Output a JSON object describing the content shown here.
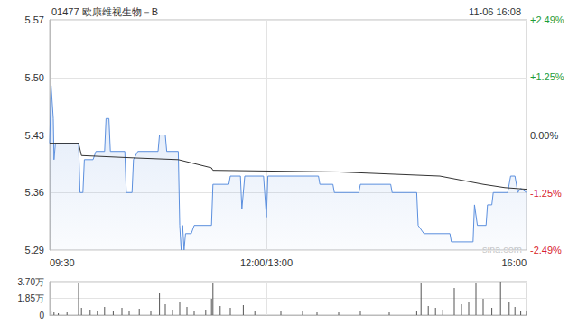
{
  "chart_data": [
    {
      "type": "line",
      "title": "01477 欧康维视生物－B",
      "subtitle": "11-06 16:08",
      "annotations": [
        {
          "text": "sina.com"
        }
      ],
      "xlim": [
        0,
        330
      ],
      "xticks": [
        {
          "value": 0,
          "label": "09:30"
        },
        {
          "value": 150,
          "label": "12:00/13:00"
        },
        {
          "value": 330,
          "label": "16:00"
        }
      ],
      "ylim": [
        5.29,
        5.57
      ],
      "yticks": [
        5.29,
        5.36,
        5.43,
        {
          "value": 5.5,
          "label": "5.50"
        },
        5.57
      ],
      "y2lim": [
        -2.49,
        2.49
      ],
      "y2ticks": [
        {
          "value": -2.49,
          "label": "-2.49%"
        },
        {
          "value": -1.25,
          "label": "-1.25%"
        },
        {
          "value": 0,
          "label": "0.00%"
        },
        {
          "value": 1.25,
          "label": "+1.25%"
        },
        {
          "value": 2.49,
          "label": "+2.49%"
        }
      ],
      "grid": true,
      "series": [
        {
          "color": "#5b8fde",
          "x": [
            0,
            1,
            2.5,
            3,
            4,
            20,
            21,
            23,
            24,
            30,
            32,
            38,
            39,
            41,
            42,
            52,
            53,
            57,
            58,
            61,
            75,
            76,
            80,
            81,
            89,
            90,
            91,
            92,
            93,
            94,
            98,
            100,
            112,
            113,
            124,
            125,
            132,
            133,
            135,
            148,
            150,
            151,
            186,
            187,
            196,
            197,
            214,
            215,
            236,
            237,
            254,
            255,
            259,
            277,
            278,
            293,
            294,
            296,
            302,
            303,
            306,
            307,
            317,
            319,
            322,
            324,
            326,
            330
          ],
          "values": [
            5.42,
            5.49,
            5.45,
            5.4,
            5.42,
            5.42,
            5.36,
            5.36,
            5.4,
            5.4,
            5.41,
            5.41,
            5.45,
            5.45,
            5.41,
            5.41,
            5.36,
            5.36,
            5.4,
            5.41,
            5.41,
            5.43,
            5.43,
            5.41,
            5.41,
            5.32,
            5.29,
            5.32,
            5.29,
            5.31,
            5.31,
            5.32,
            5.32,
            5.37,
            5.37,
            5.38,
            5.38,
            5.34,
            5.38,
            5.38,
            5.33,
            5.38,
            5.38,
            5.37,
            5.37,
            5.36,
            5.36,
            5.37,
            5.37,
            5.36,
            5.36,
            5.32,
            5.31,
            5.31,
            5.3,
            5.3,
            5.345,
            5.32,
            5.32,
            5.345,
            5.345,
            5.36,
            5.36,
            5.38,
            5.38,
            5.36,
            5.365,
            5.36
          ]
        },
        {
          "color": "#333333",
          "x": [
            0,
            20,
            22,
            60,
            89,
            112,
            113,
            200,
            270,
            285,
            300,
            315,
            330
          ],
          "values": [
            5.42,
            5.42,
            5.405,
            5.402,
            5.4,
            5.39,
            5.387,
            5.385,
            5.38,
            5.375,
            5.37,
            5.366,
            5.364
          ]
        }
      ]
    },
    {
      "type": "bar",
      "xlim": [
        0,
        330
      ],
      "xticks": [
        0,
        150,
        330
      ],
      "ylim": [
        0,
        3.7
      ],
      "yticks": [
        0,
        {
          "value": 1.85,
          "label": "1.85万"
        },
        {
          "value": 3.7,
          "label": "3.70万"
        }
      ],
      "tick_labels": "y",
      "grid": true,
      "color": "#555555",
      "x": [
        1,
        3,
        6,
        12,
        20,
        22,
        28,
        33,
        38,
        44,
        50,
        55,
        62,
        70,
        76,
        80,
        85,
        90,
        95,
        100,
        108,
        112,
        113,
        118,
        125,
        134,
        142,
        160,
        175,
        185,
        200,
        215,
        235,
        254,
        257,
        262,
        267,
        272,
        280,
        285,
        290,
        295,
        300,
        306,
        312,
        318,
        322,
        326,
        330
      ],
      "values": [
        0.4,
        0.3,
        0.2,
        0.3,
        3.5,
        0.8,
        0.6,
        0.5,
        0.9,
        0.5,
        0.8,
        0.5,
        0.7,
        0.4,
        2.4,
        1.2,
        0.6,
        1.5,
        0.9,
        0.5,
        0.6,
        1.8,
        3.6,
        1.0,
        0.8,
        1.1,
        0.5,
        0.4,
        0.5,
        0.3,
        0.3,
        0.4,
        0.3,
        0.5,
        3.5,
        1.0,
        0.8,
        0.6,
        3.0,
        1.2,
        1.5,
        3.6,
        1.8,
        0.8,
        3.7,
        1.5,
        0.9,
        0.5,
        0.4
      ]
    }
  ]
}
